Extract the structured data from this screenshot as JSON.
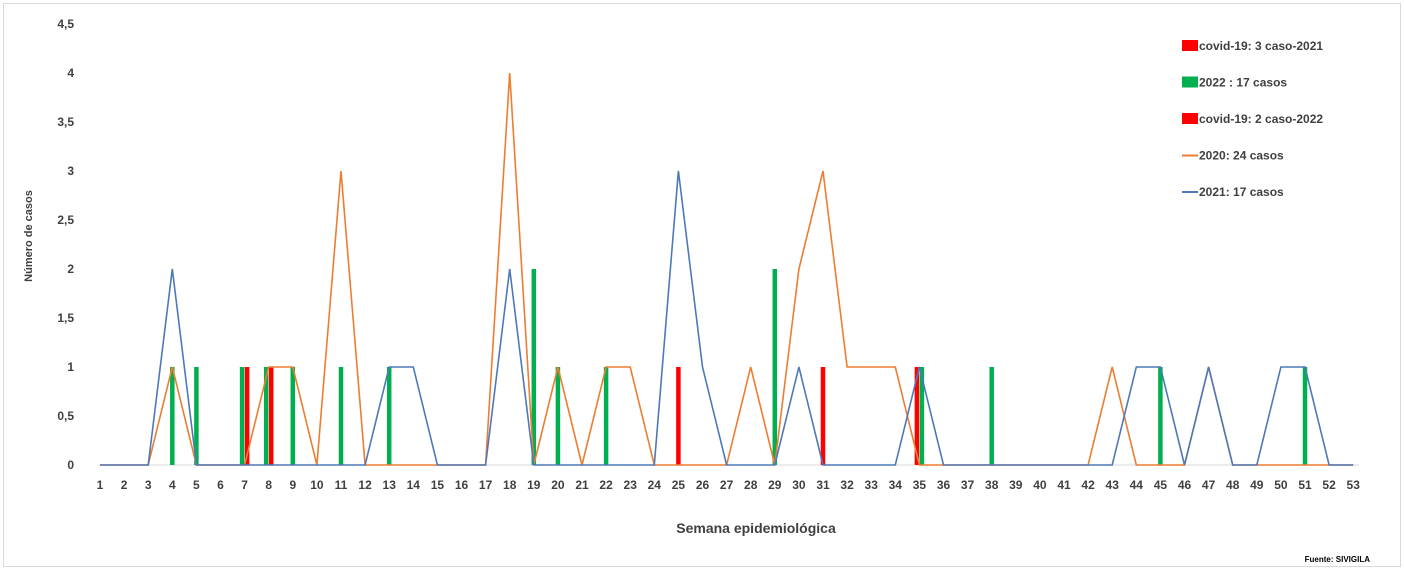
{
  "chart_data": {
    "type": "line",
    "xlabel": "Semana epidemiológica",
    "ylabel": "Número de casos",
    "source": "Fuente: SIVIGILA",
    "ylim": [
      0,
      4.5
    ],
    "yticks": [
      "0",
      "0,5",
      "1",
      "1,5",
      "2",
      "2,5",
      "3",
      "3,5",
      "4",
      "4,5"
    ],
    "x": [
      1,
      2,
      3,
      4,
      5,
      6,
      7,
      8,
      9,
      10,
      11,
      12,
      13,
      14,
      15,
      16,
      17,
      18,
      19,
      20,
      21,
      22,
      23,
      24,
      25,
      26,
      27,
      28,
      29,
      30,
      31,
      32,
      33,
      34,
      35,
      36,
      37,
      38,
      39,
      40,
      41,
      42,
      43,
      44,
      45,
      46,
      47,
      48,
      49,
      50,
      51,
      52,
      53
    ],
    "grid": false,
    "legend_position": "top-right",
    "legend": [
      {
        "label": "covid-19: 3  caso-2021",
        "color": "#ff0000",
        "kind": "bar"
      },
      {
        "label": "2022 : 17 casos",
        "color": "#00b050",
        "kind": "bar"
      },
      {
        "label": "covid-19: 2  caso-2022",
        "color": "#ff0000",
        "kind": "bar"
      },
      {
        "label": "2020: 24 casos",
        "color": "#ed7d31",
        "kind": "line"
      },
      {
        "label": "2021: 17 casos",
        "color": "#4e79b8",
        "kind": "line"
      }
    ],
    "series": [
      {
        "name": "2020: 24 casos",
        "kind": "line",
        "color": "#ed7d31",
        "values": [
          0,
          0,
          0,
          1,
          0,
          0,
          0,
          1,
          1,
          0,
          3,
          0,
          0,
          0,
          0,
          0,
          0,
          4,
          0,
          1,
          0,
          1,
          1,
          0,
          0,
          0,
          0,
          1,
          0,
          2,
          3,
          1,
          1,
          1,
          0,
          0,
          0,
          0,
          0,
          0,
          0,
          0,
          1,
          0,
          0,
          0,
          1,
          0,
          0,
          0,
          0,
          0,
          0
        ]
      },
      {
        "name": "2021: 17 casos",
        "kind": "line",
        "color": "#4e79b8",
        "values": [
          0,
          0,
          0,
          2,
          0,
          0,
          0,
          0,
          0,
          0,
          0,
          0,
          1,
          1,
          0,
          0,
          0,
          2,
          0,
          0,
          0,
          0,
          0,
          0,
          3,
          1,
          0,
          0,
          0,
          1,
          0,
          0,
          0,
          0,
          1,
          0,
          0,
          0,
          0,
          0,
          0,
          0,
          0,
          1,
          1,
          0,
          1,
          0,
          0,
          1,
          1,
          0,
          0
        ]
      },
      {
        "name": "2022 : 17 casos",
        "kind": "bar",
        "color": "#00b050",
        "points": [
          [
            4,
            1
          ],
          [
            5,
            1
          ],
          [
            7,
            1
          ],
          [
            8,
            1
          ],
          [
            9,
            1
          ],
          [
            11,
            1
          ],
          [
            13,
            1
          ],
          [
            19,
            2
          ],
          [
            20,
            1
          ],
          [
            22,
            1
          ],
          [
            29,
            2
          ],
          [
            35,
            1
          ],
          [
            38,
            1
          ],
          [
            45,
            1
          ],
          [
            51,
            1
          ]
        ]
      },
      {
        "name": "covid-19: 3  caso-2021",
        "kind": "bar",
        "color": "#ff0000",
        "points": [
          [
            7,
            1
          ],
          [
            8,
            1
          ],
          [
            31,
            1
          ]
        ]
      },
      {
        "name": "covid-19: 2  caso-2022",
        "kind": "bar",
        "color": "#ff0000",
        "points": [
          [
            25,
            1
          ],
          [
            35,
            1
          ]
        ]
      }
    ]
  }
}
